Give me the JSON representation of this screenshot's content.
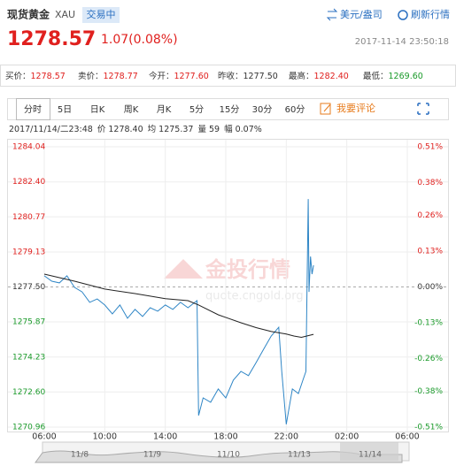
{
  "header": {
    "name": "现货黄金",
    "code": "XAU",
    "status": "交易中",
    "unit_link": "美元/盎司",
    "refresh": "刷新行情",
    "price": "1278.57",
    "change": "1.07(0.08%)",
    "time": "2017-11-14 23:50:18"
  },
  "quotes": [
    {
      "label": "买价：",
      "value": "1278.57"
    },
    {
      "label": "卖价：",
      "value": "1278.77"
    },
    {
      "label": "今开：",
      "value": "1277.60"
    },
    {
      "label": "昨收：",
      "value": "1277.50"
    },
    {
      "label": "最高：",
      "value": "1282.40"
    },
    {
      "label": "最低：",
      "value": "1269.60"
    }
  ],
  "tabs": [
    "分时",
    "5日",
    "日K",
    "周K",
    "月K",
    "5分",
    "15分",
    "30分",
    "60分"
  ],
  "comment": "我要评论",
  "info": {
    "time": "2017/11/14/二23:48",
    "price_label": "价",
    "price": "1278.40",
    "avg_label": "均",
    "avg": "1275.37",
    "vol_label": "量",
    "vol": "59",
    "amp_label": "幅",
    "amp": "0.07%"
  },
  "watermark": {
    "title": "金投行情",
    "url": "quote.cngold.org"
  },
  "chart_data": {
    "type": "line",
    "xlim": [
      6,
      30
    ],
    "xticks": [
      {
        "value": 6,
        "label": "06:00"
      },
      {
        "value": 10,
        "label": "10:00"
      },
      {
        "value": 14,
        "label": "14:00"
      },
      {
        "value": 18,
        "label": "18:00"
      },
      {
        "value": 22,
        "label": "22:00"
      },
      {
        "value": 26,
        "label": "02:00"
      },
      {
        "value": 30,
        "label": "06:00"
      }
    ],
    "ylim": [
      1270.96,
      1284.04
    ],
    "yticks": [
      1284.04,
      {
        "value": 1282.4,
        "label": "1282.40"
      },
      1280.77,
      1279.13,
      {
        "value": 1277.5,
        "label": "1277.50"
      },
      1275.87,
      1274.23,
      {
        "value": 1272.6,
        "label": "1272.60"
      },
      1270.96
    ],
    "y2lim": [
      -0.51,
      0.51
    ],
    "y2ticks": [
      {
        "value": 0.51,
        "label": "0.51%"
      },
      {
        "value": 0.38,
        "label": "0.38%"
      },
      {
        "value": 0.26,
        "label": "0.26%"
      },
      {
        "value": 0.13,
        "label": "0.13%"
      },
      {
        "value": 0,
        "label": "0.00%"
      },
      {
        "value": -0.13,
        "label": "-0.13%"
      },
      {
        "value": -0.26,
        "label": "-0.26%"
      },
      {
        "value": -0.38,
        "label": "-0.38%"
      },
      {
        "value": -0.51,
        "label": "-0.51%"
      }
    ],
    "reference": 1277.5,
    "up_color": "#e0201e",
    "down_color": "#1a9a2a",
    "series": [
      {
        "color": "#2f86c6",
        "x": [
          6,
          6.5,
          7,
          7.5,
          8,
          8.5,
          9,
          9.5,
          10,
          10.5,
          11,
          11.5,
          12,
          12.5,
          13,
          13.5,
          14,
          14.5,
          15,
          15.5,
          16.1,
          16.2,
          16.5,
          17,
          17.5,
          18,
          18.5,
          19,
          19.5,
          20,
          20.5,
          21,
          21.5,
          21.7,
          21.9,
          22,
          22.4,
          22.8,
          23.1,
          23.3,
          23.45,
          23.5,
          23.6,
          23.7,
          23.8
        ],
        "values": [
          1278.02,
          1277.77,
          1277.69,
          1278.02,
          1277.48,
          1277.27,
          1276.78,
          1276.94,
          1276.66,
          1276.24,
          1276.66,
          1276.04,
          1276.45,
          1276.12,
          1276.53,
          1276.37,
          1276.66,
          1276.45,
          1276.78,
          1276.53,
          1276.86,
          1271.5,
          1272.32,
          1272.12,
          1272.74,
          1272.32,
          1273.15,
          1273.56,
          1273.36,
          1273.97,
          1274.59,
          1275.21,
          1275.62,
          1273.56,
          1271.91,
          1271.09,
          1272.74,
          1272.53,
          1273.15,
          1273.56,
          1281.6,
          1277.27,
          1278.92,
          1278.1,
          1278.51
        ]
      },
      {
        "color": "#222222",
        "x": [
          6,
          8,
          10,
          12,
          14,
          15.5,
          16.2,
          17.5,
          19,
          20,
          21,
          22,
          22.5,
          23,
          23.8
        ],
        "values": [
          1278.1,
          1277.77,
          1277.4,
          1277.19,
          1276.95,
          1276.86,
          1276.66,
          1276.2,
          1275.83,
          1275.6,
          1275.42,
          1275.3,
          1275.21,
          1275.15,
          1275.29
        ]
      }
    ]
  },
  "navigator": {
    "labels": [
      "11/8",
      "11/9",
      "11/10",
      "11/13",
      "11/14"
    ]
  }
}
